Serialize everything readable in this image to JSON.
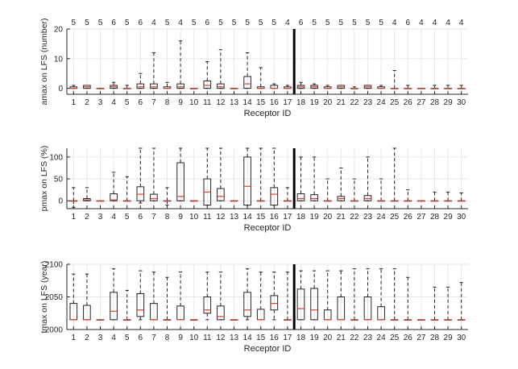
{
  "colors": {
    "box": "#262626",
    "median": "#e0413a",
    "grid": "#e6e6e6",
    "axis": "#262626",
    "divider": "#000000"
  },
  "chart_data": [
    {
      "type": "box",
      "xlabel": "Receptor ID",
      "ylabel": "amax on LFS (number)",
      "ylim": [
        -2,
        20
      ],
      "yticks": [
        0,
        10,
        20
      ],
      "grid": true,
      "divider_after_category": 17,
      "categories": [
        "1",
        "2",
        "3",
        "4",
        "5",
        "6",
        "7",
        "8",
        "9",
        "10",
        "11",
        "12",
        "13",
        "14",
        "15",
        "16",
        "17",
        "18",
        "19",
        "20",
        "21",
        "22",
        "23",
        "24",
        "25",
        "26",
        "27",
        "28",
        "29",
        "30"
      ],
      "counts": [
        "5",
        "5",
        "5",
        "6",
        "5",
        "6",
        "4",
        "5",
        "4",
        "5",
        "6",
        "5",
        "5",
        "5",
        "5",
        "5",
        "4",
        "6",
        "5",
        "5",
        "5",
        "5",
        "5",
        "5",
        "4",
        "6",
        "4",
        "4",
        "4",
        "4"
      ],
      "boxes": [
        {
          "min": 0,
          "q1": 0,
          "median": 0,
          "q3": 0.5,
          "max": 1
        },
        {
          "min": 0,
          "q1": 0,
          "median": 0.5,
          "q3": 1,
          "max": 1
        },
        {
          "min": 0,
          "q1": 0,
          "median": 0,
          "q3": 0,
          "max": 0
        },
        {
          "min": 0,
          "q1": 0,
          "median": 0.5,
          "q3": 1,
          "max": 2
        },
        {
          "min": 0,
          "q1": 0,
          "median": 0,
          "q3": 0,
          "max": 1
        },
        {
          "min": 0,
          "q1": 0,
          "median": 0.5,
          "q3": 1.5,
          "max": 5
        },
        {
          "min": 0,
          "q1": 0,
          "median": 0.5,
          "q3": 1.5,
          "max": 12
        },
        {
          "min": 0,
          "q1": 0,
          "median": 0,
          "q3": 0.5,
          "max": 2
        },
        {
          "min": 0,
          "q1": 0,
          "median": 0.5,
          "q3": 1.5,
          "max": 16
        },
        {
          "min": 0,
          "q1": 0,
          "median": 0,
          "q3": 0,
          "max": 0
        },
        {
          "min": 0,
          "q1": 0,
          "median": 1,
          "q3": 2.5,
          "max": 9
        },
        {
          "min": 0,
          "q1": 0,
          "median": 0.5,
          "q3": 1.5,
          "max": 13
        },
        {
          "min": 0,
          "q1": 0,
          "median": 0,
          "q3": 0,
          "max": 0
        },
        {
          "min": 0,
          "q1": 0,
          "median": 1.5,
          "q3": 4,
          "max": 12
        },
        {
          "min": 0,
          "q1": 0,
          "median": 0,
          "q3": 0.5,
          "max": 7
        },
        {
          "min": 0,
          "q1": 0,
          "median": 0,
          "q3": 1,
          "max": 1.5
        },
        {
          "min": 0,
          "q1": 0,
          "median": 0,
          "q3": 0.5,
          "max": 1
        },
        {
          "min": 0,
          "q1": 0,
          "median": 0.5,
          "q3": 1,
          "max": 2
        },
        {
          "min": 0,
          "q1": 0,
          "median": 0.5,
          "q3": 1,
          "max": 1.5
        },
        {
          "min": 0,
          "q1": 0,
          "median": 0,
          "q3": 0.5,
          "max": 1
        },
        {
          "min": 0,
          "q1": 0,
          "median": 0.5,
          "q3": 1,
          "max": 1
        },
        {
          "min": 0,
          "q1": 0,
          "median": 0,
          "q3": 0,
          "max": 0.5
        },
        {
          "min": 0,
          "q1": 0,
          "median": 0.5,
          "q3": 1,
          "max": 1
        },
        {
          "min": 0,
          "q1": 0,
          "median": 0,
          "q3": 0.5,
          "max": 1
        },
        {
          "min": 0,
          "q1": 0,
          "median": 0,
          "q3": 0,
          "max": 6
        },
        {
          "min": 0,
          "q1": 0,
          "median": 0,
          "q3": 0,
          "max": 1
        },
        {
          "min": 0,
          "q1": 0,
          "median": 0,
          "q3": 0,
          "max": 0
        },
        {
          "min": 0,
          "q1": 0,
          "median": 0,
          "q3": 0,
          "max": 1
        },
        {
          "min": 0,
          "q1": 0,
          "median": 0,
          "q3": 0,
          "max": 1
        },
        {
          "min": 0,
          "q1": 0,
          "median": 0,
          "q3": 0,
          "max": 1
        }
      ]
    },
    {
      "type": "box",
      "xlabel": "Receptor ID",
      "ylabel": "pmax on LFS (%)",
      "ylim": [
        -18,
        120
      ],
      "yticks": [
        0,
        50,
        100
      ],
      "grid": true,
      "divider_after_category": 17,
      "categories": [
        "1",
        "2",
        "3",
        "4",
        "5",
        "6",
        "7",
        "8",
        "9",
        "10",
        "11",
        "12",
        "13",
        "14",
        "15",
        "16",
        "17",
        "18",
        "19",
        "20",
        "21",
        "22",
        "23",
        "24",
        "25",
        "26",
        "27",
        "28",
        "29",
        "30"
      ],
      "boxes": [
        {
          "min": -15,
          "q1": 0,
          "median": 0,
          "q3": 0,
          "max": 30
        },
        {
          "min": 0,
          "q1": 0,
          "median": 2,
          "q3": 5,
          "max": 30
        },
        {
          "min": 0,
          "q1": 0,
          "median": 0,
          "q3": 0,
          "max": 0
        },
        {
          "min": 0,
          "q1": 0,
          "median": 2,
          "q3": 16,
          "max": 65
        },
        {
          "min": 0,
          "q1": 0,
          "median": 0,
          "q3": 0,
          "max": 55
        },
        {
          "min": -5,
          "q1": 0,
          "median": 15,
          "q3": 32,
          "max": 120
        },
        {
          "min": 0,
          "q1": 0,
          "median": 5,
          "q3": 15,
          "max": 120
        },
        {
          "min": -10,
          "q1": 0,
          "median": 0,
          "q3": 0,
          "max": 30
        },
        {
          "min": 0,
          "q1": 0,
          "median": 10,
          "q3": 87,
          "max": 120
        },
        {
          "min": 0,
          "q1": 0,
          "median": 0,
          "q3": 0,
          "max": 0
        },
        {
          "min": -10,
          "q1": -10,
          "median": 20,
          "q3": 50,
          "max": 120
        },
        {
          "min": 0,
          "q1": 0,
          "median": 10,
          "q3": 28,
          "max": 120
        },
        {
          "min": 0,
          "q1": 0,
          "median": 0,
          "q3": 0,
          "max": 0
        },
        {
          "min": -10,
          "q1": -10,
          "median": 33,
          "q3": 100,
          "max": 120
        },
        {
          "min": 0,
          "q1": 0,
          "median": 0,
          "q3": 0,
          "max": 120
        },
        {
          "min": -10,
          "q1": -10,
          "median": 15,
          "q3": 30,
          "max": 120
        },
        {
          "min": 0,
          "q1": 0,
          "median": 0,
          "q3": 0,
          "max": 30
        },
        {
          "min": 0,
          "q1": 0,
          "median": 5,
          "q3": 16,
          "max": 100
        },
        {
          "min": 0,
          "q1": 0,
          "median": 5,
          "q3": 14,
          "max": 100
        },
        {
          "min": 0,
          "q1": 0,
          "median": 0,
          "q3": 0,
          "max": 50
        },
        {
          "min": 0,
          "q1": 0,
          "median": 5,
          "q3": 10,
          "max": 75
        },
        {
          "min": 0,
          "q1": 0,
          "median": 0,
          "q3": 0,
          "max": 50
        },
        {
          "min": 0,
          "q1": 0,
          "median": 5,
          "q3": 12,
          "max": 100
        },
        {
          "min": 0,
          "q1": 0,
          "median": 0,
          "q3": 0,
          "max": 50
        },
        {
          "min": 0,
          "q1": 0,
          "median": 0,
          "q3": 0,
          "max": 120
        },
        {
          "min": 0,
          "q1": 0,
          "median": 0,
          "q3": 0,
          "max": 25
        },
        {
          "min": 0,
          "q1": 0,
          "median": 0,
          "q3": 0,
          "max": 0
        },
        {
          "min": 0,
          "q1": 0,
          "median": 0,
          "q3": 0,
          "max": 20
        },
        {
          "min": 0,
          "q1": 0,
          "median": 0,
          "q3": 0,
          "max": 20
        },
        {
          "min": 0,
          "q1": 0,
          "median": 0,
          "q3": 0,
          "max": 18
        }
      ]
    },
    {
      "type": "box",
      "xlabel": "Receptor ID",
      "ylabel": "tmax on LFS (year)",
      "ylim": [
        2000,
        2100
      ],
      "yticks": [
        2000,
        2050,
        2100
      ],
      "grid": true,
      "divider_after_category": 17,
      "categories": [
        "1",
        "2",
        "3",
        "4",
        "5",
        "6",
        "7",
        "8",
        "9",
        "10",
        "11",
        "12",
        "13",
        "14",
        "15",
        "16",
        "17",
        "18",
        "19",
        "20",
        "21",
        "22",
        "23",
        "24",
        "25",
        "26",
        "27",
        "28",
        "29",
        "30"
      ],
      "boxes": [
        {
          "min": 2015,
          "q1": 2015,
          "median": 2015,
          "q3": 2040,
          "max": 2085
        },
        {
          "min": 2015,
          "q1": 2015,
          "median": 2015,
          "q3": 2037,
          "max": 2085
        },
        {
          "min": 2015,
          "q1": 2015,
          "median": 2015,
          "q3": 2015,
          "max": 2015
        },
        {
          "min": 2015,
          "q1": 2015,
          "median": 2028,
          "q3": 2057,
          "max": 2093
        },
        {
          "min": 2015,
          "q1": 2015,
          "median": 2015,
          "q3": 2015,
          "max": 2060
        },
        {
          "min": 2015,
          "q1": 2020,
          "median": 2030,
          "q3": 2055,
          "max": 2090
        },
        {
          "min": 2015,
          "q1": 2015,
          "median": 2015,
          "q3": 2040,
          "max": 2088
        },
        {
          "min": 2015,
          "q1": 2015,
          "median": 2015,
          "q3": 2015,
          "max": 2080
        },
        {
          "min": 2015,
          "q1": 2015,
          "median": 2015,
          "q3": 2036,
          "max": 2088
        },
        {
          "min": 2015,
          "q1": 2015,
          "median": 2015,
          "q3": 2015,
          "max": 2015
        },
        {
          "min": 2015,
          "q1": 2025,
          "median": 2030,
          "q3": 2050,
          "max": 2088
        },
        {
          "min": 2015,
          "q1": 2015,
          "median": 2020,
          "q3": 2036,
          "max": 2088
        },
        {
          "min": 2015,
          "q1": 2015,
          "median": 2015,
          "q3": 2015,
          "max": 2015
        },
        {
          "min": 2015,
          "q1": 2020,
          "median": 2030,
          "q3": 2057,
          "max": 2093
        },
        {
          "min": 2015,
          "q1": 2015,
          "median": 2015,
          "q3": 2031,
          "max": 2088
        },
        {
          "min": 2015,
          "q1": 2030,
          "median": 2040,
          "q3": 2052,
          "max": 2088
        },
        {
          "min": 2015,
          "q1": 2015,
          "median": 2015,
          "q3": 2015,
          "max": 2088
        },
        {
          "min": 2015,
          "q1": 2015,
          "median": 2032,
          "q3": 2062,
          "max": 2090
        },
        {
          "min": 2015,
          "q1": 2015,
          "median": 2030,
          "q3": 2063,
          "max": 2090
        },
        {
          "min": 2015,
          "q1": 2015,
          "median": 2015,
          "q3": 2030,
          "max": 2090
        },
        {
          "min": 2015,
          "q1": 2015,
          "median": 2015,
          "q3": 2050,
          "max": 2090
        },
        {
          "min": 2015,
          "q1": 2015,
          "median": 2015,
          "q3": 2015,
          "max": 2093
        },
        {
          "min": 2015,
          "q1": 2015,
          "median": 2015,
          "q3": 2050,
          "max": 2093
        },
        {
          "min": 2015,
          "q1": 2015,
          "median": 2015,
          "q3": 2035,
          "max": 2093
        },
        {
          "min": 2015,
          "q1": 2015,
          "median": 2015,
          "q3": 2015,
          "max": 2093
        },
        {
          "min": 2015,
          "q1": 2015,
          "median": 2015,
          "q3": 2015,
          "max": 2080
        },
        {
          "min": 2015,
          "q1": 2015,
          "median": 2015,
          "q3": 2015,
          "max": 2015
        },
        {
          "min": 2015,
          "q1": 2015,
          "median": 2015,
          "q3": 2015,
          "max": 2065
        },
        {
          "min": 2015,
          "q1": 2015,
          "median": 2015,
          "q3": 2015,
          "max": 2065
        },
        {
          "min": 2015,
          "q1": 2015,
          "median": 2015,
          "q3": 2015,
          "max": 2072
        }
      ]
    }
  ]
}
